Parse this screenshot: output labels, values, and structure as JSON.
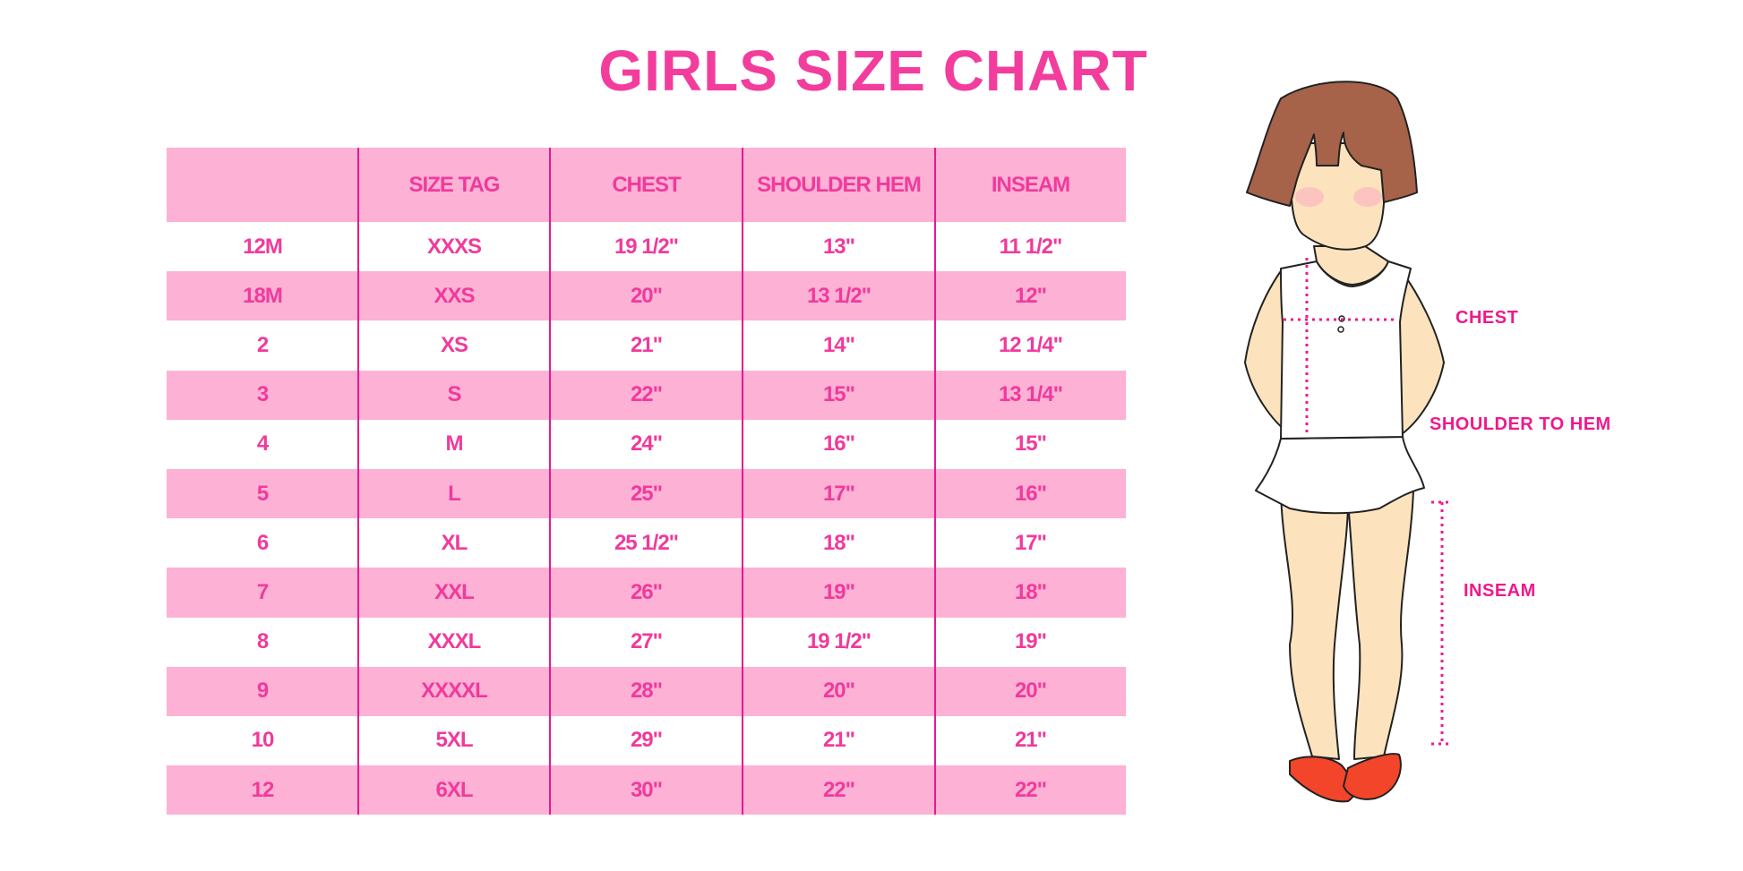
{
  "title": "GIRLS SIZE CHART",
  "colors": {
    "accent": "#f03a9c",
    "row_pink": "#fdb1d5",
    "divider": "#e8188f"
  },
  "table": {
    "headers": [
      "",
      "SIZE TAG",
      "CHEST",
      "SHOULDER HEM",
      "INSEAM"
    ],
    "rows": [
      [
        "12M",
        "XXXS",
        "19 1/2\"",
        "13\"",
        "11 1/2\""
      ],
      [
        "18M",
        "XXS",
        "20\"",
        "13 1/2\"",
        "12\""
      ],
      [
        "2",
        "XS",
        "21\"",
        "14\"",
        "12 1/4\""
      ],
      [
        "3",
        "S",
        "22\"",
        "15\"",
        "13 1/4\""
      ],
      [
        "4",
        "M",
        "24\"",
        "16\"",
        "15\""
      ],
      [
        "5",
        "L",
        "25\"",
        "17\"",
        "16\""
      ],
      [
        "6",
        "XL",
        "25 1/2\"",
        "18\"",
        "17\""
      ],
      [
        "7",
        "XXL",
        "26\"",
        "19\"",
        "18\""
      ],
      [
        "8",
        "XXXL",
        "27\"",
        "19 1/2\"",
        "19\""
      ],
      [
        "9",
        "XXXXL",
        "28\"",
        "20\"",
        "20\""
      ],
      [
        "10",
        "5XL",
        "29\"",
        "21\"",
        "21\""
      ],
      [
        "12",
        "6XL",
        "30\"",
        "22\"",
        "22\""
      ]
    ]
  },
  "figure": {
    "labels": {
      "chest": "CHEST",
      "shoulder": "SHOULDER TO HEM",
      "inseam": "INSEAM"
    }
  }
}
